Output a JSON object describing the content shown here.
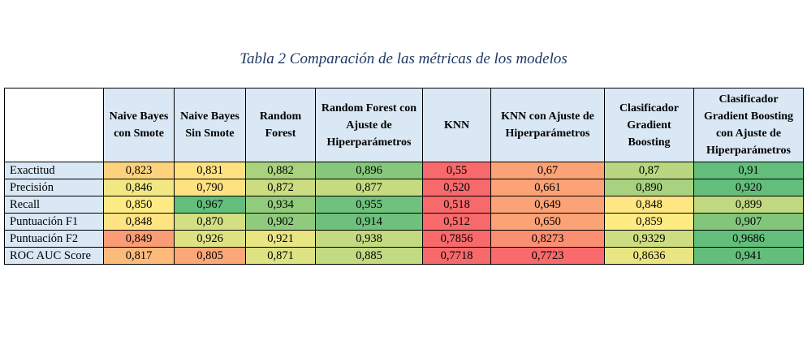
{
  "caption": "Tabla 2 Comparación de las métricas de los modelos",
  "table": {
    "columns": [
      "Naive Bayes con Smote",
      "Naive Bayes Sin Smote",
      "Random Forest",
      "Random Forest con Ajuste de Hiperparámetros",
      "KNN",
      "KNN con Ajuste de Hiperparámetros",
      "Clasificador Gradient Boosting",
      "Clasificador Gradient Boosting con Ajuste de Hiperparámetros"
    ],
    "rows": [
      {
        "label": "Exactitud",
        "values": [
          "0,823",
          "0,831",
          "0,882",
          "0,896",
          "0,55",
          "0,67",
          "0,87",
          "0,91"
        ],
        "colors": [
          "#fdd27e",
          "#fee282",
          "#a9d27f",
          "#86c77b",
          "#f8696b",
          "#fba276",
          "#b8d780",
          "#63be7b"
        ]
      },
      {
        "label": "Precisión",
        "values": [
          "0,846",
          "0,790",
          "0,872",
          "0,877",
          "0,520",
          "0,661",
          "0,890",
          "0,920"
        ],
        "colors": [
          "#f1e783",
          "#fee282",
          "#cbdc81",
          "#c6db80",
          "#f8696b",
          "#fba276",
          "#a8d27f",
          "#63be7b"
        ]
      },
      {
        "label": "Recall",
        "values": [
          "0,850",
          "0,967",
          "0,934",
          "0,955",
          "0,518",
          "0,649",
          "0,848",
          "0,899"
        ],
        "colors": [
          "#ffeb84",
          "#63be7b",
          "#93cb7d",
          "#70c17c",
          "#f8696b",
          "#fba276",
          "#fee683",
          "#c0d980"
        ]
      },
      {
        "label": "Puntuación F1",
        "values": [
          "0,848",
          "0,870",
          "0,902",
          "0,914",
          "0,512",
          "0,650",
          "0,859",
          "0,907"
        ],
        "colors": [
          "#fee482",
          "#d3df82",
          "#8fca7d",
          "#6ec07c",
          "#f8696b",
          "#fba276",
          "#ffeb84",
          "#82c67c"
        ]
      },
      {
        "label": "Puntuación F2",
        "values": [
          "0,849",
          "0,926",
          "0,921",
          "0,938",
          "0,7856",
          "0,8273",
          "0,9329",
          "0,9686"
        ],
        "colors": [
          "#fa9c75",
          "#dee283",
          "#e8e583",
          "#c4da80",
          "#f8696b",
          "#fb8f72",
          "#cedd81",
          "#63be7b"
        ]
      },
      {
        "label": "ROC AUC Score",
        "values": [
          "0,817",
          "0,805",
          "0,871",
          "0,885",
          "0,7718",
          "0,7723",
          "0,8636",
          "0,941"
        ],
        "colors": [
          "#fcbb7b",
          "#fca777",
          "#dde283",
          "#c2da80",
          "#f8696b",
          "#f86a6b",
          "#eae583",
          "#63be7b"
        ]
      }
    ]
  }
}
